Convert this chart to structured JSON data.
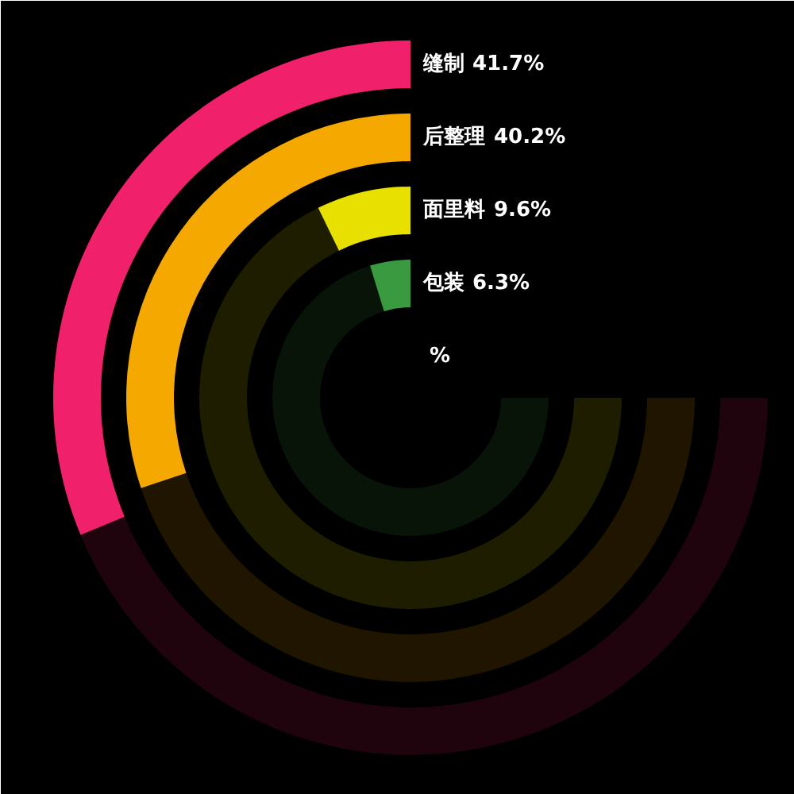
{
  "chart_data": {
    "type": "other",
    "categories": [
      "缝制",
      "后整理",
      "面里料",
      "包装"
    ],
    "values": [
      41.7,
      40.2,
      9.6,
      6.3
    ],
    "value_labels": [
      "41.7%",
      "40.2%",
      "9.6%",
      "6.3%"
    ],
    "colors": [
      "#f0206a",
      "#f5a800",
      "#e8e000",
      "#3a9a40"
    ],
    "annotations": [
      "%"
    ]
  }
}
